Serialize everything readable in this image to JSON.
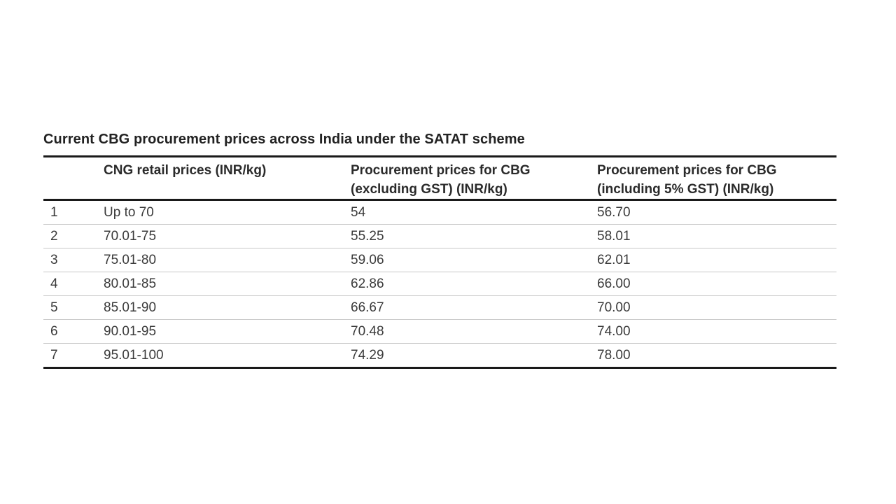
{
  "chart_data": {
    "type": "table",
    "title": "Current CBG procurement prices across India under the SATAT scheme",
    "columns": [
      "",
      "CNG retail prices (INR/kg)",
      "Procurement prices for CBG (excluding GST) (INR/kg)",
      "Procurement prices for CBG (including 5% GST) (INR/kg)"
    ],
    "header_lines": {
      "col2": [
        "Procurement prices for CBG",
        "(excluding GST) (INR/kg)"
      ],
      "col3": [
        "Procurement prices for CBG",
        "(including 5% GST) (INR/kg)"
      ]
    },
    "rows": [
      [
        "1",
        "Up to 70",
        "54",
        "56.70"
      ],
      [
        "2",
        "70.01-75",
        "55.25",
        "58.01"
      ],
      [
        "3",
        "75.01-80",
        "59.06",
        "62.01"
      ],
      [
        "4",
        "80.01-85",
        "62.86",
        "66.00"
      ],
      [
        "5",
        "85.01-90",
        "66.67",
        "70.00"
      ],
      [
        "6",
        "90.01-95",
        "70.48",
        "74.00"
      ],
      [
        "7",
        "95.01-100",
        "74.29",
        "78.00"
      ]
    ]
  }
}
